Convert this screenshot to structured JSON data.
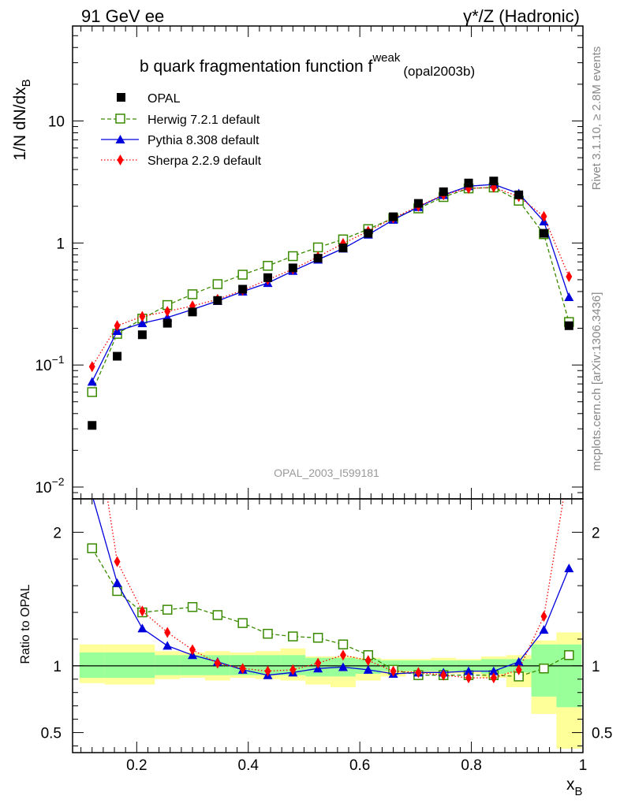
{
  "header": {
    "left": "91 GeV ee",
    "right": "γ*/Z (Hadronic)"
  },
  "side_labels": {
    "rivet": "Rivet 3.1.10, ≥ 2.8M events",
    "mcplots": "mcplots.cern.ch [arXiv:1306.3436]"
  },
  "colors": {
    "opal": "#000000",
    "herwig": "#3a8a00",
    "pythia": "#0000dd",
    "sherpa": "#ff0000",
    "band_stat": "#99ff99",
    "band_total": "#ffff99"
  },
  "chart_data": [
    {
      "type": "line",
      "title": "b quark fragmentation function f",
      "title_sup": "weak",
      "title_sub": "(opal2003b)",
      "watermark": "OPAL_2003_I599181",
      "ylabel": "1/N dN/dx",
      "ylabel_sub": "B",
      "yscale": "log",
      "xlim": [
        0.085,
        1.0
      ],
      "ylim": [
        0.008,
        60
      ],
      "y_ticks": [
        {
          "value": 0.01,
          "label": "10",
          "sup": "−2"
        },
        {
          "value": 0.1,
          "label": "10",
          "sup": "−1"
        },
        {
          "value": 1,
          "label": "1",
          "sup": ""
        },
        {
          "value": 10,
          "label": "10",
          "sup": ""
        }
      ],
      "legend_position": "top-left",
      "x": [
        0.12,
        0.165,
        0.21,
        0.255,
        0.3,
        0.345,
        0.39,
        0.435,
        0.48,
        0.525,
        0.57,
        0.615,
        0.66,
        0.705,
        0.75,
        0.795,
        0.84,
        0.885,
        0.93,
        0.975
      ],
      "series": [
        {
          "name": "OPAL",
          "style": "data",
          "values": [
            0.032,
            0.118,
            0.177,
            0.22,
            0.272,
            0.338,
            0.418,
            0.52,
            0.625,
            0.75,
            0.91,
            1.2,
            1.64,
            2.11,
            2.63,
            3.1,
            3.22,
            2.48,
            1.2,
            0.21
          ]
        },
        {
          "name": "Herwig 7.2.1 default",
          "style": "herwig",
          "values": [
            0.06,
            0.18,
            0.24,
            0.31,
            0.38,
            0.46,
            0.55,
            0.65,
            0.78,
            0.92,
            1.07,
            1.3,
            1.6,
            1.92,
            2.38,
            2.8,
            2.85,
            2.22,
            1.18,
            0.225
          ]
        },
        {
          "name": "Pythia 8.308 default",
          "style": "pythia",
          "values": [
            0.073,
            0.19,
            0.22,
            0.245,
            0.285,
            0.335,
            0.4,
            0.47,
            0.59,
            0.73,
            0.9,
            1.17,
            1.55,
            1.97,
            2.47,
            2.92,
            3.02,
            2.55,
            1.5,
            0.36
          ]
        },
        {
          "name": "Sherpa 2.2.9 default",
          "style": "sherpa",
          "values": [
            0.097,
            0.21,
            0.25,
            0.275,
            0.305,
            0.345,
            0.41,
            0.5,
            0.61,
            0.77,
            0.99,
            1.25,
            1.6,
            2.0,
            2.48,
            2.8,
            2.86,
            2.4,
            1.65,
            0.53
          ]
        }
      ]
    },
    {
      "type": "line",
      "ylabel": "Ratio to OPAL",
      "xlabel": "x",
      "xlabel_sub": "B",
      "xlim": [
        0.085,
        1.0
      ],
      "ylim": [
        0.35,
        2.25
      ],
      "x_ticks": [
        0.2,
        0.4,
        0.6,
        0.8,
        1.0
      ],
      "x_tick_labels": [
        "0.2",
        "0.4",
        "0.6",
        "0.8",
        "1"
      ],
      "y_ticks": [
        0.5,
        1,
        2
      ],
      "y_tick_labels": [
        "0.5",
        "1",
        "2"
      ],
      "reference_line": 1,
      "bands": {
        "edges": [
          0.0975,
          0.1425,
          0.1875,
          0.2325,
          0.2775,
          0.3225,
          0.3675,
          0.4125,
          0.4575,
          0.5025,
          0.5475,
          0.5925,
          0.6375,
          0.6825,
          0.7275,
          0.7725,
          0.8175,
          0.8625,
          0.9075,
          0.9525,
          0.9975
        ],
        "stat_low": [
          0.91,
          0.91,
          0.91,
          0.93,
          0.93,
          0.93,
          0.93,
          0.93,
          0.93,
          0.92,
          0.92,
          0.94,
          0.96,
          0.96,
          0.96,
          0.96,
          0.94,
          0.95,
          0.77,
          0.69
        ],
        "stat_high": [
          1.1,
          1.1,
          1.1,
          1.08,
          1.08,
          1.08,
          1.08,
          1.08,
          1.08,
          1.06,
          1.06,
          1.05,
          1.04,
          1.04,
          1.04,
          1.04,
          1.05,
          1.05,
          1.16,
          1.16
        ],
        "total_low": [
          0.87,
          0.86,
          0.86,
          0.9,
          0.91,
          0.89,
          0.91,
          0.9,
          0.89,
          0.86,
          0.84,
          0.89,
          0.92,
          0.94,
          0.94,
          0.94,
          0.91,
          0.84,
          0.64,
          0.38
        ],
        "total_high": [
          1.16,
          1.16,
          1.16,
          1.11,
          1.1,
          1.11,
          1.1,
          1.11,
          1.13,
          1.07,
          1.07,
          1.06,
          1.05,
          1.05,
          1.06,
          1.05,
          1.07,
          1.08,
          1.19,
          1.25
        ]
      },
      "series": [
        {
          "name": "Herwig 7.2.1 default",
          "style": "herwig",
          "values": [
            1.88,
            1.56,
            1.4,
            1.42,
            1.44,
            1.38,
            1.32,
            1.24,
            1.22,
            1.21,
            1.16,
            1.08,
            0.97,
            0.93,
            0.93,
            0.93,
            0.93,
            0.92,
            0.98,
            1.08
          ]
        },
        {
          "name": "Pythia 8.308 default",
          "style": "pythia",
          "values": [
            2.28,
            1.62,
            1.28,
            1.15,
            1.08,
            1.03,
            0.97,
            0.93,
            0.95,
            0.98,
            0.99,
            0.97,
            0.94,
            0.95,
            0.95,
            0.96,
            0.96,
            1.03,
            1.27,
            1.73
          ]
        },
        {
          "name": "Sherpa 2.2.9 default",
          "style": "sherpa",
          "values": [
            3.0,
            1.78,
            1.41,
            1.25,
            1.12,
            1.02,
            0.98,
            0.96,
            0.97,
            1.02,
            1.08,
            1.04,
            0.96,
            0.95,
            0.93,
            0.91,
            0.91,
            0.97,
            1.37,
            2.5
          ]
        }
      ]
    }
  ]
}
